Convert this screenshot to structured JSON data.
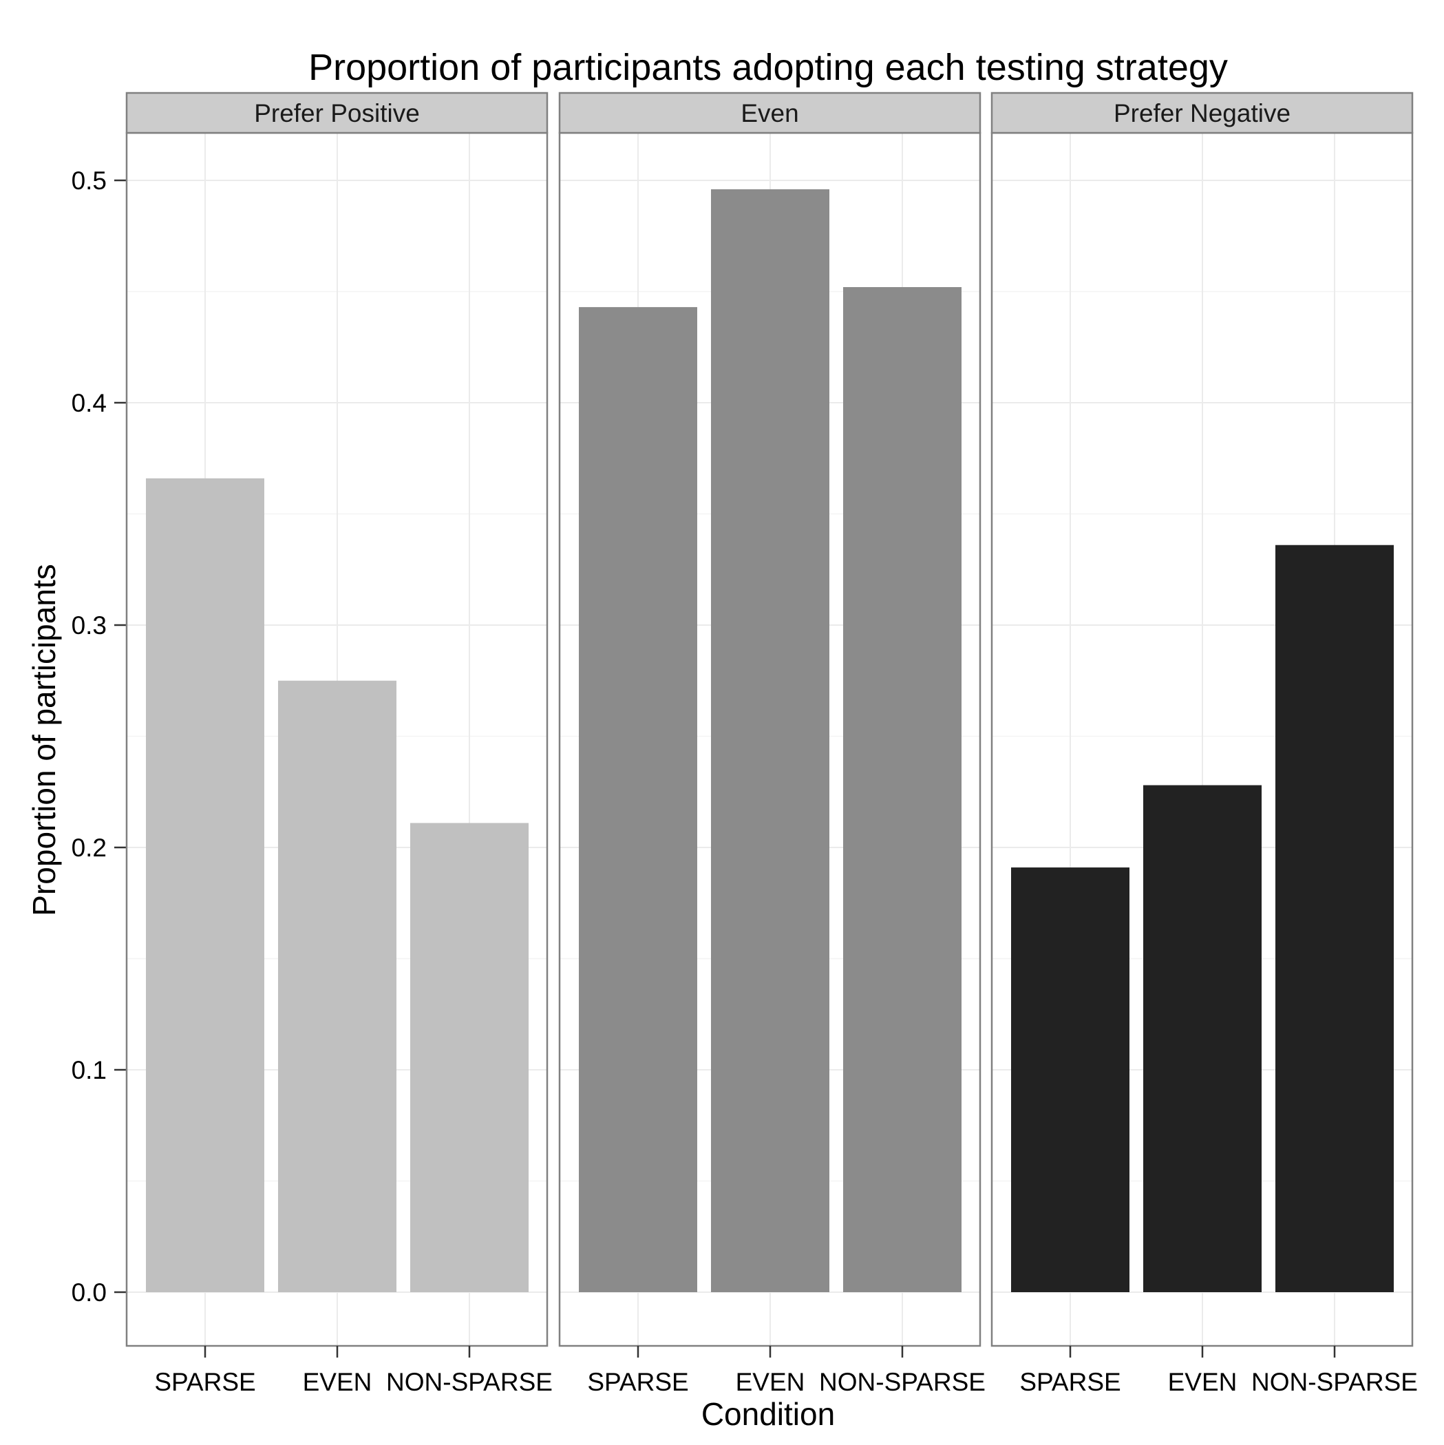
{
  "chart_data": {
    "type": "bar",
    "title": "Proportion of participants adopting each testing strategy",
    "xlabel": "Condition",
    "ylabel": "Proportion of participants",
    "ylim": [
      -0.025,
      0.521
    ],
    "yticks": [
      "0.0",
      "0.1",
      "0.2",
      "0.3",
      "0.4",
      "0.5"
    ],
    "ytick_values": [
      0.0,
      0.1,
      0.2,
      0.3,
      0.4,
      0.5
    ],
    "categories": [
      "SPARSE",
      "EVEN",
      "NON-SPARSE"
    ],
    "grid": true,
    "facets": [
      {
        "name": "Prefer Positive",
        "color": "#c0c0c0",
        "values": [
          0.366,
          0.275,
          0.211
        ]
      },
      {
        "name": "Even",
        "color": "#8b8b8b",
        "values": [
          0.443,
          0.496,
          0.452
        ]
      },
      {
        "name": "Prefer Negative",
        "color": "#222222",
        "values": [
          0.191,
          0.228,
          0.336
        ]
      }
    ]
  }
}
